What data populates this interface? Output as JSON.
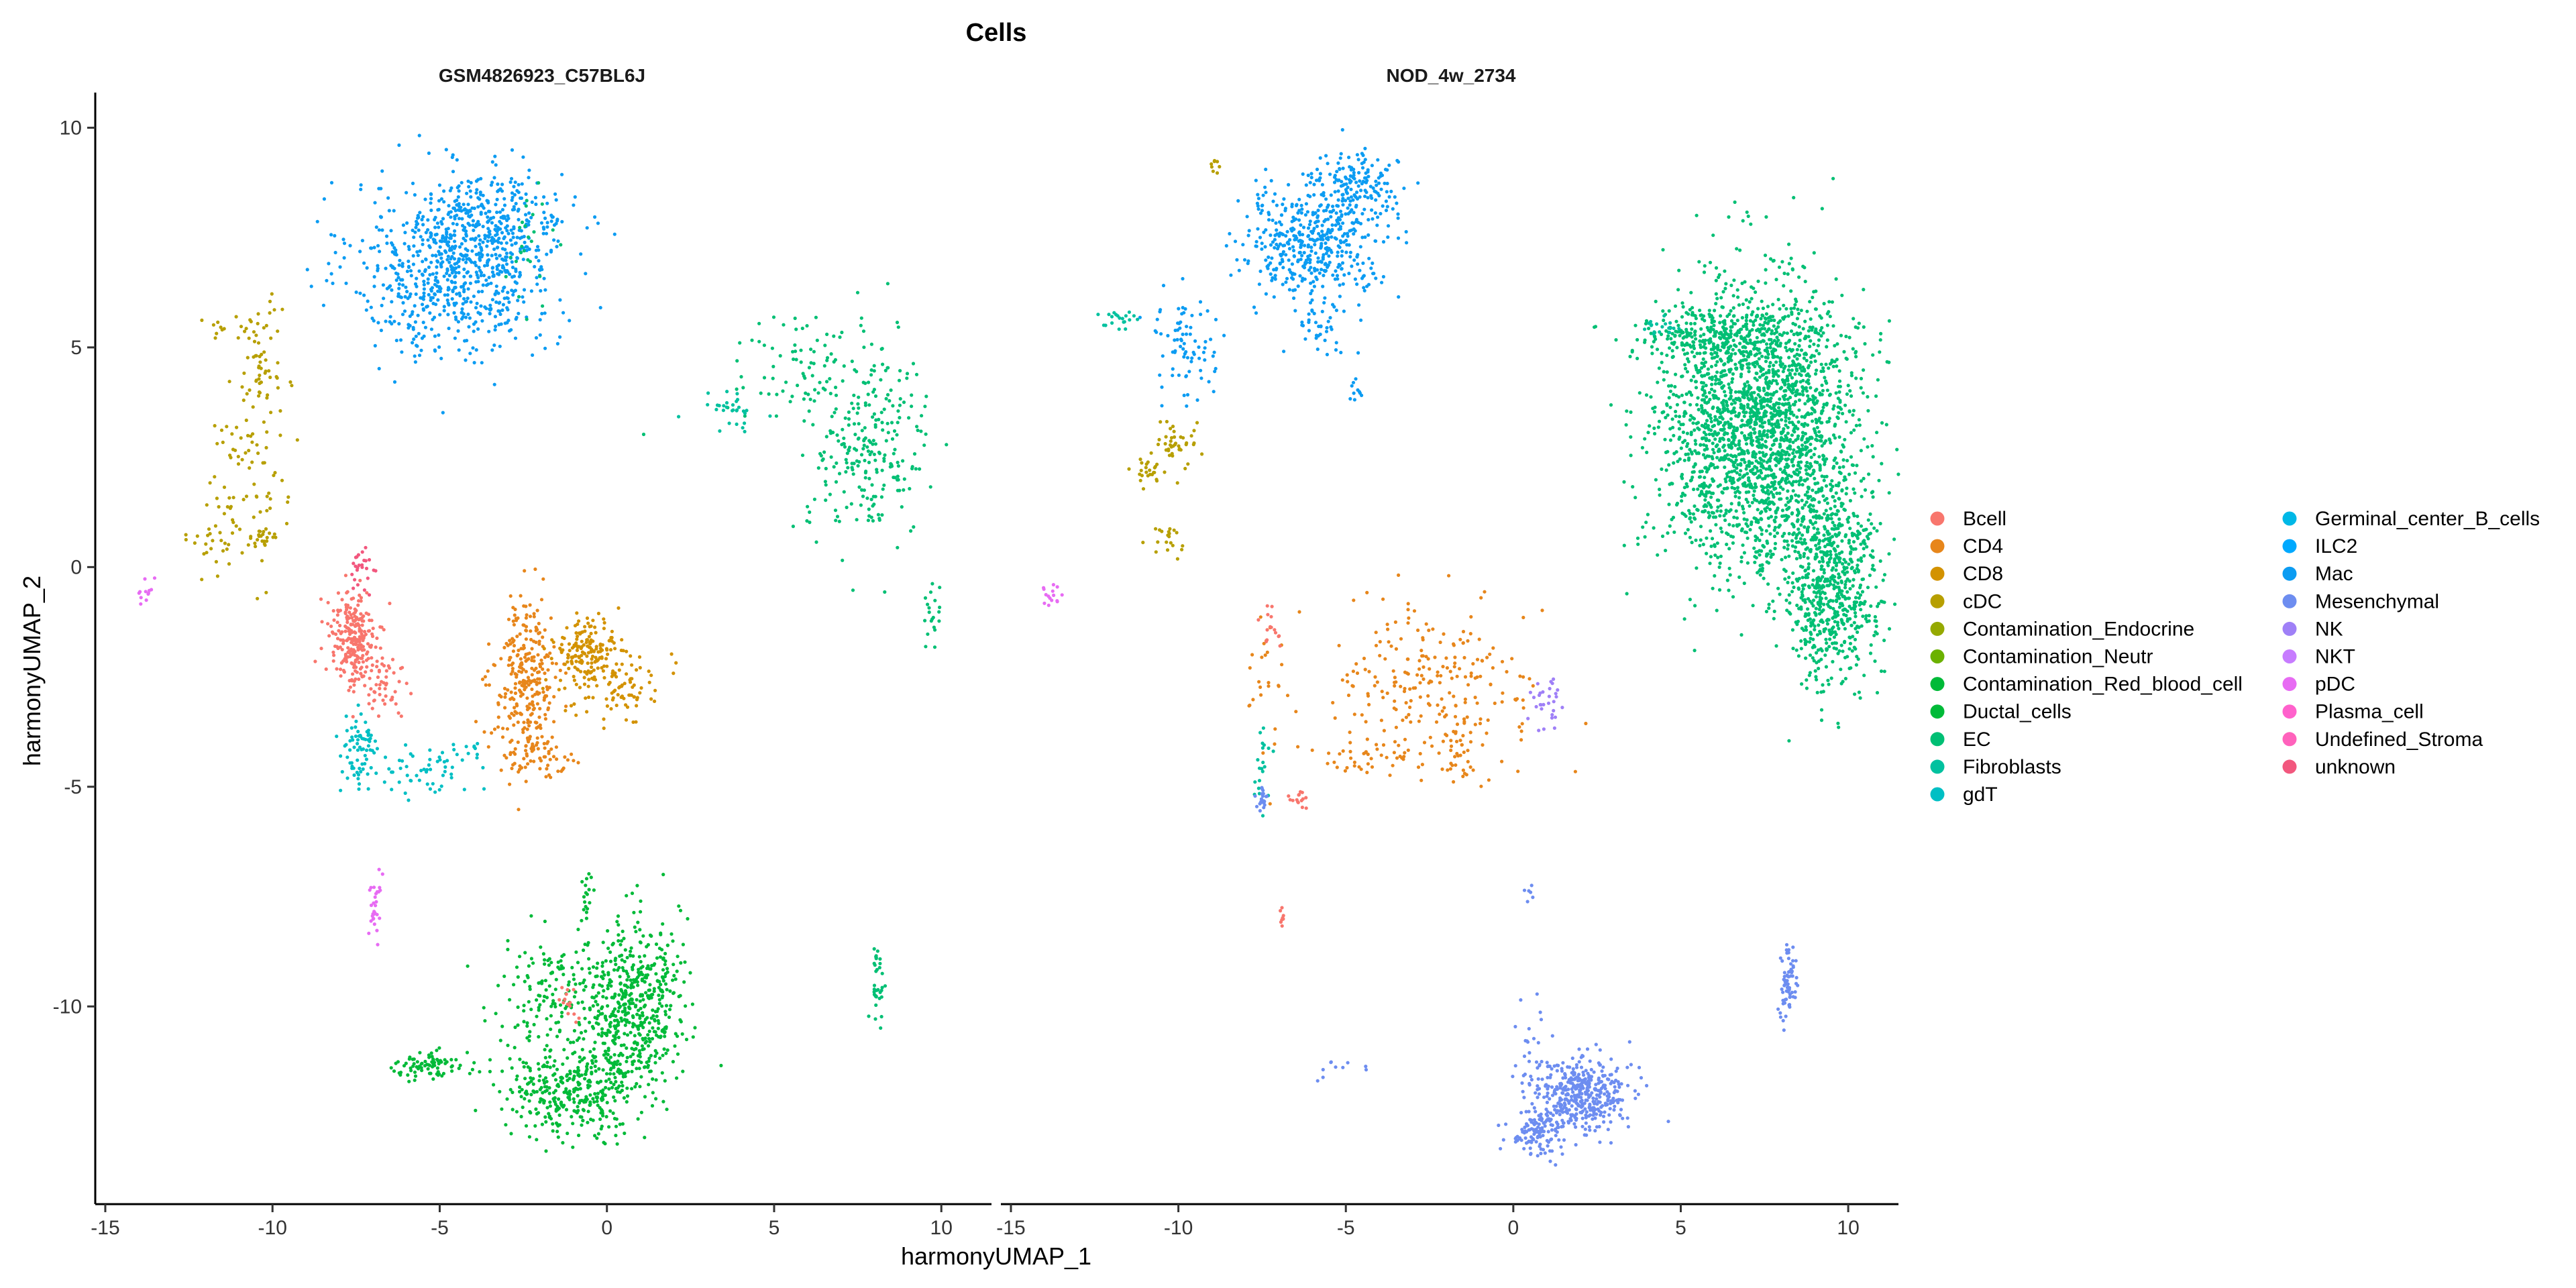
{
  "chart_data": {
    "type": "scatter",
    "title": "Cells",
    "xlabel": "harmonyUMAP_1",
    "ylabel": "harmonyUMAP_2",
    "xlim": [
      -15.3,
      11.5
    ],
    "ylim": [
      -14.5,
      10.8
    ],
    "x_ticks": [
      -15,
      -10,
      -5,
      0,
      5,
      10
    ],
    "x_tick_labels": [
      "-15",
      "-10",
      "-5",
      "0",
      "5",
      "10"
    ],
    "y_ticks": [
      10,
      5,
      0,
      -5,
      -10
    ],
    "y_tick_labels": [
      "10",
      "5",
      "0",
      "-5",
      "-10"
    ],
    "grid": false,
    "legend_position": "right",
    "facets": [
      "GSM4826923_C57BL6J",
      "NOD_4w_2734"
    ],
    "series": [
      {
        "name": "Bcell",
        "color": "#F8766D"
      },
      {
        "name": "CD4",
        "color": "#E7861B"
      },
      {
        "name": "CD8",
        "color": "#D39200"
      },
      {
        "name": "cDC",
        "color": "#B79F00"
      },
      {
        "name": "Contamination_Endocrine",
        "color": "#95A900"
      },
      {
        "name": "Contamination_Neutr",
        "color": "#6BB100"
      },
      {
        "name": "Contamination_Red_blood_cell",
        "color": "#00BA38"
      },
      {
        "name": "Ductal_cells",
        "color": "#00BA38"
      },
      {
        "name": "EC",
        "color": "#00BF74"
      },
      {
        "name": "Fibroblasts",
        "color": "#00C19F"
      },
      {
        "name": "gdT",
        "color": "#00BFC4"
      },
      {
        "name": "Germinal_center_B_cells",
        "color": "#00B8E7"
      },
      {
        "name": "ILC2",
        "color": "#00A9FF"
      },
      {
        "name": "Mac",
        "color": "#0C9CF2"
      },
      {
        "name": "Mesenchymal",
        "color": "#6D8DF0"
      },
      {
        "name": "NK",
        "color": "#9F80F7"
      },
      {
        "name": "NKT",
        "color": "#C77CFF"
      },
      {
        "name": "pDC",
        "color": "#E76BF3"
      },
      {
        "name": "Plasma_cell",
        "color": "#FF61CC"
      },
      {
        "name": "Undefined_Stroma",
        "color": "#FF62BC"
      },
      {
        "name": "unknown",
        "color": "#F2577E"
      }
    ],
    "clusters": [
      {
        "facet": 0,
        "series": "Mac",
        "cx": -4.6,
        "cy": 6.8,
        "sx": 1.5,
        "sy": 1.0,
        "n": 700
      },
      {
        "facet": 0,
        "series": "Mac",
        "cx": -3.2,
        "cy": 7.8,
        "sx": 1.0,
        "sy": 0.6,
        "n": 250
      },
      {
        "facet": 0,
        "series": "cDC",
        "cx": -10.3,
        "cy": 4.6,
        "sx": 0.3,
        "sy": 0.7,
        "n": 60
      },
      {
        "facet": 0,
        "series": "cDC",
        "cx": -10.8,
        "cy": 2.0,
        "sx": 0.6,
        "sy": 1.0,
        "n": 70
      },
      {
        "facet": 0,
        "series": "cDC",
        "cx": -11.7,
        "cy": 0.7,
        "sx": 0.4,
        "sy": 0.3,
        "n": 25
      },
      {
        "facet": 0,
        "series": "cDC",
        "cx": -10.3,
        "cy": 0.6,
        "sx": 0.2,
        "sy": 0.2,
        "n": 25
      },
      {
        "facet": 0,
        "series": "cDC",
        "cx": -11.3,
        "cy": 5.5,
        "sx": 0.5,
        "sy": 0.2,
        "n": 15
      },
      {
        "facet": 0,
        "series": "EC",
        "cx": 7.8,
        "cy": 2.8,
        "sx": 0.9,
        "sy": 1.1,
        "n": 260
      },
      {
        "facet": 0,
        "series": "EC",
        "cx": 5.8,
        "cy": 4.7,
        "sx": 1.2,
        "sy": 0.6,
        "n": 70
      },
      {
        "facet": 0,
        "series": "Fibroblasts",
        "cx": 3.8,
        "cy": 3.6,
        "sx": 0.4,
        "sy": 0.2,
        "n": 30
      },
      {
        "facet": 0,
        "series": "EC",
        "cx": -2.3,
        "cy": 7.1,
        "sx": 0.3,
        "sy": 0.6,
        "n": 25
      },
      {
        "facet": 0,
        "series": "EC",
        "cx": 9.6,
        "cy": -1.2,
        "sx": 0.2,
        "sy": 0.6,
        "n": 20
      },
      {
        "facet": 0,
        "series": "Bcell",
        "cx": -7.6,
        "cy": -1.6,
        "sx": 0.35,
        "sy": 0.55,
        "n": 230
      },
      {
        "facet": 0,
        "series": "Bcell",
        "cx": -6.8,
        "cy": -2.6,
        "sx": 0.4,
        "sy": 0.5,
        "n": 60
      },
      {
        "facet": 0,
        "series": "unknown",
        "cx": -7.3,
        "cy": -0.2,
        "sx": 0.2,
        "sy": 0.3,
        "n": 25
      },
      {
        "facet": 0,
        "series": "gdT",
        "cx": -7.4,
        "cy": -4.2,
        "sx": 0.3,
        "sy": 0.5,
        "n": 70
      },
      {
        "facet": 0,
        "series": "gdT",
        "cx": -5.8,
        "cy": -4.7,
        "sx": 0.8,
        "sy": 0.3,
        "n": 50
      },
      {
        "facet": 0,
        "series": "gdT",
        "cx": -4.3,
        "cy": -4.2,
        "sx": 0.4,
        "sy": 0.1,
        "n": 15
      },
      {
        "facet": 0,
        "series": "CD4",
        "cx": -2.4,
        "cy": -2.6,
        "sx": 0.5,
        "sy": 0.9,
        "n": 280
      },
      {
        "facet": 0,
        "series": "CD4",
        "cx": -2.0,
        "cy": -4.3,
        "sx": 0.5,
        "sy": 0.3,
        "n": 60
      },
      {
        "facet": 0,
        "series": "CD8",
        "cx": -0.6,
        "cy": -1.9,
        "sx": 0.5,
        "sy": 0.35,
        "n": 170
      },
      {
        "facet": 0,
        "series": "CD8",
        "cx": 0.4,
        "cy": -2.8,
        "sx": 0.7,
        "sy": 0.4,
        "n": 80
      },
      {
        "facet": 0,
        "series": "pDC",
        "cx": -6.9,
        "cy": -7.7,
        "sx": 0.1,
        "sy": 0.4,
        "n": 30
      },
      {
        "facet": 0,
        "series": "pDC",
        "cx": -13.9,
        "cy": -0.5,
        "sx": 0.2,
        "sy": 0.15,
        "n": 12
      },
      {
        "facet": 0,
        "series": "Ductal_cells",
        "cx": 0.8,
        "cy": -10.0,
        "sx": 0.7,
        "sy": 1.0,
        "n": 520
      },
      {
        "facet": 0,
        "series": "Ductal_cells",
        "cx": -1.0,
        "cy": -11.9,
        "sx": 1.0,
        "sy": 0.5,
        "n": 360
      },
      {
        "facet": 0,
        "series": "Ductal_cells",
        "cx": -1.6,
        "cy": -9.6,
        "sx": 0.9,
        "sy": 0.6,
        "n": 150
      },
      {
        "facet": 0,
        "series": "Ductal_cells",
        "cx": -5.3,
        "cy": -11.3,
        "sx": 0.5,
        "sy": 0.15,
        "n": 80
      },
      {
        "facet": 0,
        "series": "Ductal_cells",
        "cx": -0.6,
        "cy": -7.5,
        "sx": 0.1,
        "sy": 0.3,
        "n": 18
      },
      {
        "facet": 0,
        "series": "EC",
        "cx": 8.1,
        "cy": -9.5,
        "sx": 0.1,
        "sy": 0.6,
        "n": 35
      },
      {
        "facet": 0,
        "series": "Bcell",
        "cx": -1.1,
        "cy": -10.1,
        "sx": 0.15,
        "sy": 0.25,
        "n": 14
      },
      {
        "facet": 1,
        "series": "Mac",
        "cx": -6.0,
        "cy": 7.4,
        "sx": 1.1,
        "sy": 0.6,
        "n": 450
      },
      {
        "facet": 1,
        "series": "Mac",
        "cx": -4.7,
        "cy": 8.7,
        "sx": 0.6,
        "sy": 0.4,
        "n": 150
      },
      {
        "facet": 1,
        "series": "Mac",
        "cx": -9.8,
        "cy": 5.1,
        "sx": 0.5,
        "sy": 0.6,
        "n": 80
      },
      {
        "facet": 1,
        "series": "Mac",
        "cx": -5.7,
        "cy": 5.6,
        "sx": 0.5,
        "sy": 0.4,
        "n": 40
      },
      {
        "facet": 1,
        "series": "Mac",
        "cx": -4.7,
        "cy": 4.0,
        "sx": 0.1,
        "sy": 0.15,
        "n": 10
      },
      {
        "facet": 1,
        "series": "cDC",
        "cx": -10.0,
        "cy": 2.8,
        "sx": 0.3,
        "sy": 0.3,
        "n": 40
      },
      {
        "facet": 1,
        "series": "cDC",
        "cx": -10.9,
        "cy": 2.1,
        "sx": 0.2,
        "sy": 0.2,
        "n": 25
      },
      {
        "facet": 1,
        "series": "cDC",
        "cx": -10.3,
        "cy": 0.6,
        "sx": 0.3,
        "sy": 0.2,
        "n": 20
      },
      {
        "facet": 1,
        "series": "cDC",
        "cx": -8.9,
        "cy": 9.1,
        "sx": 0.1,
        "sy": 0.1,
        "n": 8
      },
      {
        "facet": 1,
        "series": "Fibroblasts",
        "cx": -11.8,
        "cy": 5.6,
        "sx": 0.3,
        "sy": 0.1,
        "n": 20
      },
      {
        "facet": 1,
        "series": "EC",
        "cx": 7.3,
        "cy": 3.2,
        "sx": 1.5,
        "sy": 1.6,
        "n": 2300
      },
      {
        "facet": 1,
        "series": "EC",
        "cx": 9.5,
        "cy": -0.4,
        "sx": 0.7,
        "sy": 1.1,
        "n": 650
      },
      {
        "facet": 1,
        "series": "EC",
        "cx": 6.0,
        "cy": 5.2,
        "sx": 1.2,
        "sy": 0.3,
        "n": 200
      },
      {
        "facet": 1,
        "series": "Fibroblasts",
        "cx": 4.4,
        "cy": 5.5,
        "sx": 0.3,
        "sy": 0.1,
        "n": 20
      },
      {
        "facet": 1,
        "series": "CD4",
        "cx": -2.5,
        "cy": -2.7,
        "sx": 1.5,
        "sy": 0.9,
        "n": 230
      },
      {
        "facet": 1,
        "series": "CD4",
        "cx": -4.5,
        "cy": -4.3,
        "sx": 1.0,
        "sy": 0.2,
        "n": 40
      },
      {
        "facet": 1,
        "series": "CD4",
        "cx": -1.7,
        "cy": -4.2,
        "sx": 0.2,
        "sy": 0.4,
        "n": 30
      },
      {
        "facet": 1,
        "series": "CD4",
        "cx": -7.4,
        "cy": -2.6,
        "sx": 0.3,
        "sy": 1.0,
        "n": 25
      },
      {
        "facet": 1,
        "series": "NK",
        "cx": 1.0,
        "cy": -3.0,
        "sx": 0.3,
        "sy": 0.3,
        "n": 30
      },
      {
        "facet": 1,
        "series": "Bcell",
        "cx": -7.3,
        "cy": -1.4,
        "sx": 0.2,
        "sy": 0.3,
        "n": 15
      },
      {
        "facet": 1,
        "series": "Fibroblasts",
        "cx": -7.5,
        "cy": -4.4,
        "sx": 0.15,
        "sy": 0.5,
        "n": 20
      },
      {
        "facet": 1,
        "series": "Mesenchymal",
        "cx": -7.5,
        "cy": -5.3,
        "sx": 0.1,
        "sy": 0.15,
        "n": 20
      },
      {
        "facet": 1,
        "series": "Bcell",
        "cx": -6.4,
        "cy": -5.3,
        "sx": 0.15,
        "sy": 0.1,
        "n": 15
      },
      {
        "facet": 1,
        "series": "pDC",
        "cx": -13.8,
        "cy": -0.6,
        "sx": 0.2,
        "sy": 0.15,
        "n": 15
      },
      {
        "facet": 1,
        "series": "Bcell",
        "cx": -6.9,
        "cy": -7.9,
        "sx": 0.05,
        "sy": 0.2,
        "n": 8
      },
      {
        "facet": 1,
        "series": "Mesenchymal",
        "cx": 2.0,
        "cy": -12.0,
        "sx": 0.7,
        "sy": 0.4,
        "n": 420
      },
      {
        "facet": 1,
        "series": "Mesenchymal",
        "cx": 0.7,
        "cy": -12.9,
        "sx": 0.4,
        "sy": 0.3,
        "n": 120
      },
      {
        "facet": 1,
        "series": "Mesenchymal",
        "cx": 0.4,
        "cy": -10.8,
        "sx": 0.3,
        "sy": 0.6,
        "n": 25
      },
      {
        "facet": 1,
        "series": "Mesenchymal",
        "cx": 8.2,
        "cy": -9.5,
        "sx": 0.12,
        "sy": 0.5,
        "n": 70
      },
      {
        "facet": 1,
        "series": "Mesenchymal",
        "cx": -5.4,
        "cy": -11.4,
        "sx": 0.4,
        "sy": 0.1,
        "n": 10
      },
      {
        "facet": 1,
        "series": "Mesenchymal",
        "cx": 0.5,
        "cy": -7.3,
        "sx": 0.1,
        "sy": 0.2,
        "n": 6
      }
    ]
  }
}
